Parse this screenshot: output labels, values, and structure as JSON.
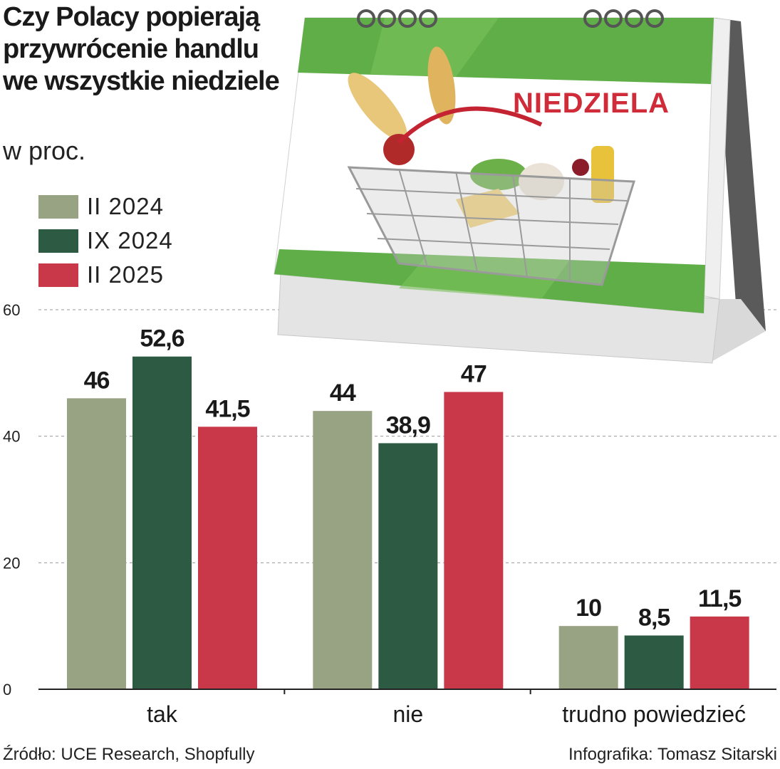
{
  "title": "Czy Polacy popierają przywrócenie handlu we wszystkie niedziele",
  "subtitle": "w proc.",
  "legend": [
    {
      "label": "II 2024",
      "color": "#98a383"
    },
    {
      "label": "IX 2024",
      "color": "#2d5a43"
    },
    {
      "label": "II 2025",
      "color": "#c93848"
    }
  ],
  "illustration": {
    "calendar_label": "NIEDZIELA",
    "calendar_green": "#6bb04a",
    "basket_icon": "shopping-basket-icon"
  },
  "chart_data": {
    "type": "bar",
    "categories": [
      "tak",
      "nie",
      "trudno powiedzieć"
    ],
    "series": [
      {
        "name": "II 2024",
        "values": [
          46,
          44,
          10
        ],
        "labels": [
          "46",
          "44",
          "10"
        ]
      },
      {
        "name": "IX 2024",
        "values": [
          52.6,
          38.9,
          8.5
        ],
        "labels": [
          "52,6",
          "38,9",
          "8,5"
        ]
      },
      {
        "name": "II 2025",
        "values": [
          41.5,
          47,
          11.5
        ],
        "labels": [
          "41,5",
          "47",
          "11,5"
        ]
      }
    ],
    "ylim": [
      0,
      60
    ],
    "yticks": [
      0,
      20,
      40,
      60
    ],
    "grid": true,
    "legend_position": "top-left"
  },
  "footer": {
    "source": "Źródło: UCE Research, Shopfully",
    "credit": "Infografika: Tomasz Sitarski"
  }
}
